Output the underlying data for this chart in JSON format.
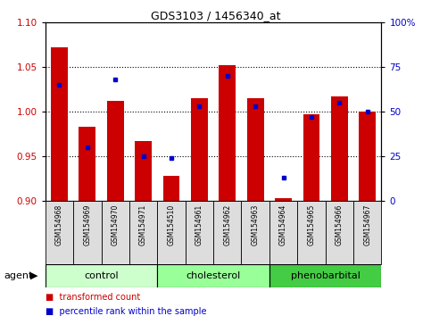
{
  "title": "GDS3103 / 1456340_at",
  "samples": [
    "GSM154968",
    "GSM154969",
    "GSM154970",
    "GSM154971",
    "GSM154510",
    "GSM154961",
    "GSM154962",
    "GSM154963",
    "GSM154964",
    "GSM154965",
    "GSM154966",
    "GSM154967"
  ],
  "transformed_count": [
    1.072,
    0.983,
    1.012,
    0.967,
    0.928,
    1.015,
    1.052,
    1.015,
    0.903,
    0.997,
    1.017,
    1.0
  ],
  "percentile_rank": [
    65,
    30,
    68,
    25,
    24,
    53,
    70,
    53,
    13,
    47,
    55,
    50
  ],
  "groups": [
    {
      "label": "control",
      "color": "#ccffcc",
      "start": 0,
      "end": 3
    },
    {
      "label": "cholesterol",
      "color": "#99ff99",
      "start": 4,
      "end": 7
    },
    {
      "label": "phenobarbital",
      "color": "#44cc44",
      "start": 8,
      "end": 11
    }
  ],
  "ylim_left": [
    0.9,
    1.1
  ],
  "ylim_right": [
    0,
    100
  ],
  "yticks_left": [
    0.9,
    0.95,
    1.0,
    1.05,
    1.1
  ],
  "yticks_right": [
    0,
    25,
    50,
    75,
    100
  ],
  "ytick_labels_right": [
    "0",
    "25",
    "50",
    "75",
    "100%"
  ],
  "bar_color_red": "#cc0000",
  "dot_color_blue": "#0000cc",
  "background_color": "#ffffff",
  "ylabel_left_color": "#cc0000",
  "ylabel_right_color": "#0000cc",
  "tick_label_gray": "#dddddd",
  "sample_box_color": "#dddddd"
}
